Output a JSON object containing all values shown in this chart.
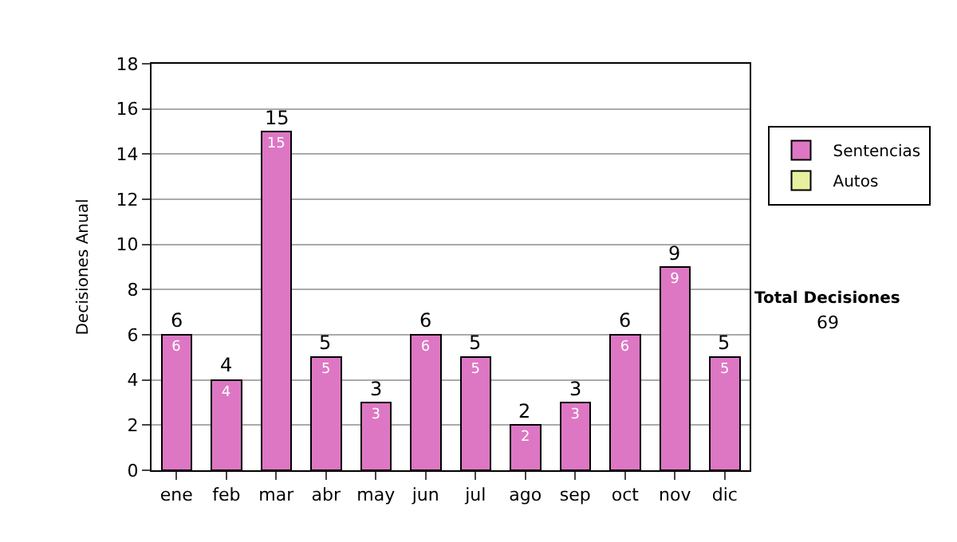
{
  "chart_data": {
    "type": "bar",
    "stacked": true,
    "ylabel": "Decisiones Anual",
    "categories": [
      "ene",
      "feb",
      "mar",
      "abr",
      "may",
      "jun",
      "jul",
      "ago",
      "sep",
      "oct",
      "nov",
      "dic"
    ],
    "series": [
      {
        "name": "Sentencias",
        "color": "#dd77c4",
        "values": [
          6,
          4,
          15,
          5,
          3,
          6,
          5,
          2,
          3,
          6,
          9,
          5
        ]
      },
      {
        "name": "Autos",
        "color": "#e8f0a0",
        "values": [
          null,
          null,
          null,
          null,
          null,
          null,
          null,
          null,
          null,
          null,
          null,
          null
        ]
      }
    ],
    "totals": [
      "6",
      "4",
      "15",
      "5",
      "3",
      "6",
      "5",
      "2",
      "3",
      "6",
      "9",
      "5"
    ],
    "data_labels": true,
    "ylim": [
      0,
      18
    ],
    "yticks": [
      0,
      2,
      4,
      6,
      8,
      10,
      12,
      14,
      16,
      18
    ],
    "grid": "y",
    "legend": "right",
    "annotations": [
      "Total Decisiones",
      "69"
    ]
  }
}
